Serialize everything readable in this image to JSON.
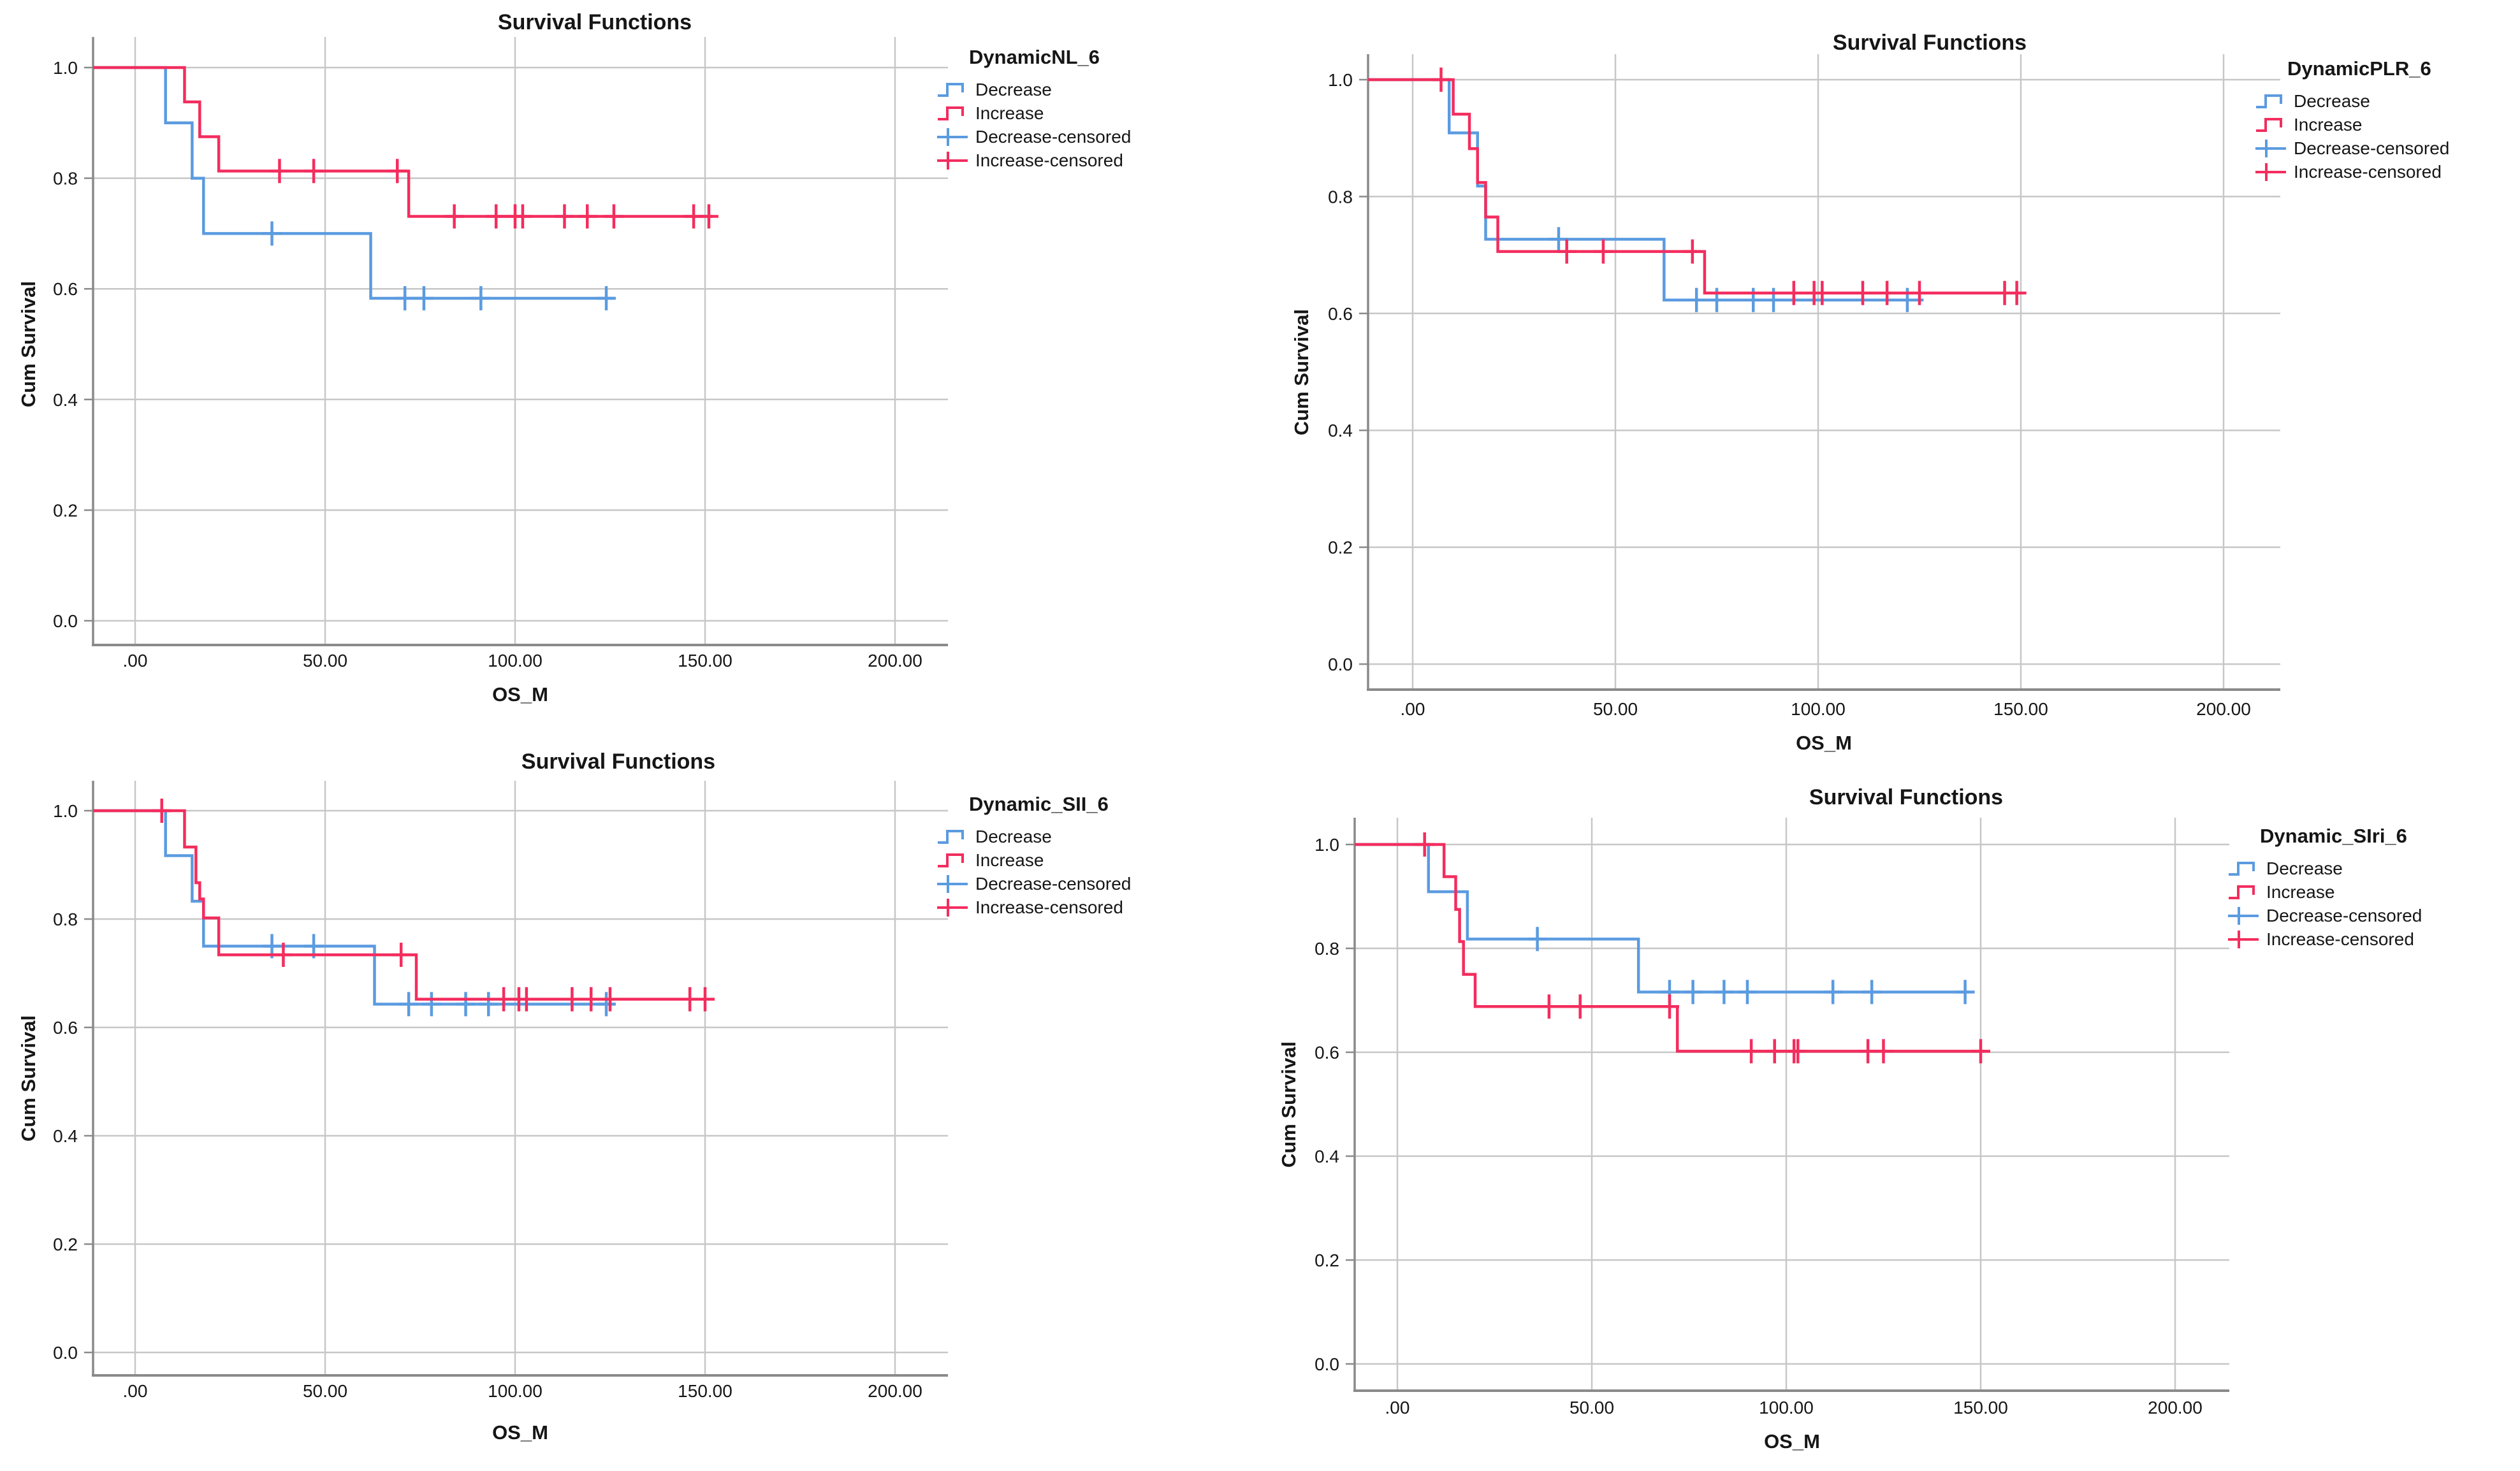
{
  "colors": {
    "decrease": "#5B9BE0",
    "increase": "#F32D5E",
    "gridline": "#C7C7C7",
    "frame": "#8A8A8A",
    "text": "#161616"
  },
  "chart_data": [
    {
      "type": "line",
      "subtype": "kaplan-meier-step",
      "title": "Survival Functions",
      "xlabel": "OS_M",
      "ylabel": "Cum Survival",
      "legend_title": "DynamicNL_6",
      "legend_position": "right-top",
      "grid": true,
      "xlim": [
        -11,
        214
      ],
      "ylim": [
        -0.05,
        1.06
      ],
      "x_ticks": {
        "values": [
          0,
          50,
          100,
          150,
          200
        ],
        "labels": [
          ".00",
          "50.00",
          "100.00",
          "150.00",
          "200.00"
        ]
      },
      "y_ticks": {
        "values": [
          0,
          0.2,
          0.4,
          0.6,
          0.8,
          1.0
        ],
        "labels": [
          "0.0",
          "0.2",
          "0.4",
          "0.6",
          "0.8",
          "1.0"
        ]
      },
      "legend_entries": [
        "Decrease",
        "Increase",
        "Decrease-censored",
        "Increase-censored"
      ],
      "series": [
        {
          "name": "Decrease",
          "color_key": "decrease",
          "steps": [
            [
              0,
              1.0
            ],
            [
              8,
              0.9
            ],
            [
              15,
              0.8
            ],
            [
              18,
              0.7
            ],
            [
              62,
              0.583
            ]
          ],
          "end_x": 126,
          "censored": [
            [
              36,
              0.7
            ],
            [
              71,
              0.583
            ],
            [
              76,
              0.583
            ],
            [
              91,
              0.583
            ],
            [
              124,
              0.583
            ]
          ]
        },
        {
          "name": "Increase",
          "color_key": "increase",
          "steps": [
            [
              0,
              1.0
            ],
            [
              13,
              0.938
            ],
            [
              17,
              0.875
            ],
            [
              22,
              0.813
            ],
            [
              72,
              0.731
            ]
          ],
          "end_x": 152,
          "censored": [
            [
              38,
              0.813
            ],
            [
              47,
              0.813
            ],
            [
              69,
              0.813
            ],
            [
              84,
              0.731
            ],
            [
              95,
              0.731
            ],
            [
              100,
              0.731
            ],
            [
              102,
              0.731
            ],
            [
              113,
              0.731
            ],
            [
              119,
              0.731
            ],
            [
              126,
              0.731
            ],
            [
              147,
              0.731
            ],
            [
              151,
              0.731
            ]
          ]
        }
      ]
    },
    {
      "type": "line",
      "subtype": "kaplan-meier-step",
      "title": "Survival Functions",
      "xlabel": "OS_M",
      "ylabel": "Cum Survival",
      "legend_title": "DynamicPLR_6",
      "legend_position": "right-top",
      "grid": true,
      "xlim": [
        -11,
        214
      ],
      "ylim": [
        -0.05,
        1.06
      ],
      "x_ticks": {
        "values": [
          0,
          50,
          100,
          150,
          200
        ],
        "labels": [
          ".00",
          "50.00",
          "100.00",
          "150.00",
          "200.00"
        ]
      },
      "y_ticks": {
        "values": [
          0,
          0.2,
          0.4,
          0.6,
          0.8,
          1.0
        ],
        "labels": [
          "0.0",
          "0.2",
          "0.4",
          "0.6",
          "0.8",
          "1.0"
        ]
      },
      "legend_entries": [
        "Decrease",
        "Increase",
        "Decrease-censored",
        "Increase-censored"
      ],
      "series": [
        {
          "name": "Decrease",
          "color_key": "decrease",
          "steps": [
            [
              0,
              1.0
            ],
            [
              9,
              0.909
            ],
            [
              16,
              0.818
            ],
            [
              18,
              0.727
            ],
            [
              62,
              0.623
            ]
          ],
          "end_x": 126,
          "censored": [
            [
              36,
              0.727
            ],
            [
              70,
              0.623
            ],
            [
              75,
              0.623
            ],
            [
              84,
              0.623
            ],
            [
              89,
              0.623
            ],
            [
              122,
              0.623
            ]
          ]
        },
        {
          "name": "Increase",
          "color_key": "increase",
          "steps": [
            [
              0,
              1.0
            ],
            [
              10,
              0.941
            ],
            [
              14,
              0.882
            ],
            [
              16,
              0.824
            ],
            [
              18,
              0.765
            ],
            [
              21,
              0.706
            ],
            [
              72,
              0.635
            ]
          ],
          "end_x": 151,
          "censored": [
            [
              7,
              1.0
            ],
            [
              38,
              0.706
            ],
            [
              47,
              0.706
            ],
            [
              69,
              0.706
            ],
            [
              94,
              0.635
            ],
            [
              99,
              0.635
            ],
            [
              101,
              0.635
            ],
            [
              111,
              0.635
            ],
            [
              117,
              0.635
            ],
            [
              125,
              0.635
            ],
            [
              146,
              0.635
            ],
            [
              149,
              0.635
            ]
          ]
        }
      ]
    },
    {
      "type": "line",
      "subtype": "kaplan-meier-step",
      "title": "Survival Functions",
      "xlabel": "OS_M",
      "ylabel": "Cum Survival",
      "legend_title": "Dynamic_SII_6",
      "legend_position": "right-top",
      "grid": true,
      "xlim": [
        -11,
        214
      ],
      "ylim": [
        -0.05,
        1.06
      ],
      "x_ticks": {
        "values": [
          0,
          50,
          100,
          150,
          200
        ],
        "labels": [
          ".00",
          "50.00",
          "100.00",
          "150.00",
          "200.00"
        ]
      },
      "y_ticks": {
        "values": [
          0,
          0.2,
          0.4,
          0.6,
          0.8,
          1.0
        ],
        "labels": [
          "0.0",
          "0.2",
          "0.4",
          "0.6",
          "0.8",
          "1.0"
        ]
      },
      "legend_entries": [
        "Decrease",
        "Increase",
        "Decrease-censored",
        "Increase-censored"
      ],
      "series": [
        {
          "name": "Decrease",
          "color_key": "decrease",
          "steps": [
            [
              0,
              1.0
            ],
            [
              8,
              0.917
            ],
            [
              15,
              0.833
            ],
            [
              18,
              0.75
            ],
            [
              63,
              0.643
            ]
          ],
          "end_x": 126,
          "censored": [
            [
              36,
              0.75
            ],
            [
              47,
              0.75
            ],
            [
              72,
              0.643
            ],
            [
              78,
              0.643
            ],
            [
              87,
              0.643
            ],
            [
              93,
              0.643
            ],
            [
              124,
              0.643
            ]
          ]
        },
        {
          "name": "Increase",
          "color_key": "increase",
          "steps": [
            [
              0,
              1.0
            ],
            [
              13,
              0.933
            ],
            [
              16,
              0.867
            ],
            [
              17,
              0.837
            ],
            [
              18,
              0.802
            ],
            [
              22,
              0.734
            ],
            [
              74,
              0.652
            ]
          ],
          "end_x": 151,
          "censored": [
            [
              7,
              1.0
            ],
            [
              39,
              0.734
            ],
            [
              70,
              0.734
            ],
            [
              97,
              0.652
            ],
            [
              101,
              0.652
            ],
            [
              103,
              0.652
            ],
            [
              115,
              0.652
            ],
            [
              120,
              0.652
            ],
            [
              125,
              0.652
            ],
            [
              146,
              0.652
            ],
            [
              150,
              0.652
            ]
          ]
        }
      ]
    },
    {
      "type": "line",
      "subtype": "kaplan-meier-step",
      "title": "Survival Functions",
      "xlabel": "OS_M",
      "ylabel": "Cum Survival",
      "legend_title": "Dynamic_SIri_6",
      "legend_position": "right-top",
      "grid": true,
      "xlim": [
        -11,
        214
      ],
      "ylim": [
        -0.05,
        1.06
      ],
      "x_ticks": {
        "values": [
          0,
          50,
          100,
          150,
          200
        ],
        "labels": [
          ".00",
          "50.00",
          "100.00",
          "150.00",
          "200.00"
        ]
      },
      "y_ticks": {
        "values": [
          0,
          0.2,
          0.4,
          0.6,
          0.8,
          1.0
        ],
        "labels": [
          "0.0",
          "0.2",
          "0.4",
          "0.6",
          "0.8",
          "1.0"
        ]
      },
      "legend_entries": [
        "Decrease",
        "Increase",
        "Decrease-censored",
        "Increase-censored"
      ],
      "series": [
        {
          "name": "Decrease",
          "color_key": "decrease",
          "steps": [
            [
              0,
              1.0
            ],
            [
              8,
              0.909
            ],
            [
              18,
              0.818
            ],
            [
              62,
              0.716
            ]
          ],
          "end_x": 147,
          "censored": [
            [
              36,
              0.818
            ],
            [
              70,
              0.716
            ],
            [
              76,
              0.716
            ],
            [
              84,
              0.716
            ],
            [
              90,
              0.716
            ],
            [
              112,
              0.716
            ],
            [
              122,
              0.716
            ],
            [
              146,
              0.716
            ]
          ]
        },
        {
          "name": "Increase",
          "color_key": "increase",
          "steps": [
            [
              0,
              1.0
            ],
            [
              12,
              0.938
            ],
            [
              15,
              0.875
            ],
            [
              16,
              0.813
            ],
            [
              17,
              0.75
            ],
            [
              20,
              0.688
            ],
            [
              72,
              0.602
            ]
          ],
          "end_x": 151,
          "censored": [
            [
              7,
              1.0
            ],
            [
              39,
              0.688
            ],
            [
              47,
              0.688
            ],
            [
              70,
              0.688
            ],
            [
              91,
              0.602
            ],
            [
              97,
              0.602
            ],
            [
              102,
              0.602
            ],
            [
              103,
              0.602
            ],
            [
              121,
              0.602
            ],
            [
              125,
              0.602
            ],
            [
              150,
              0.602
            ]
          ]
        }
      ]
    }
  ]
}
